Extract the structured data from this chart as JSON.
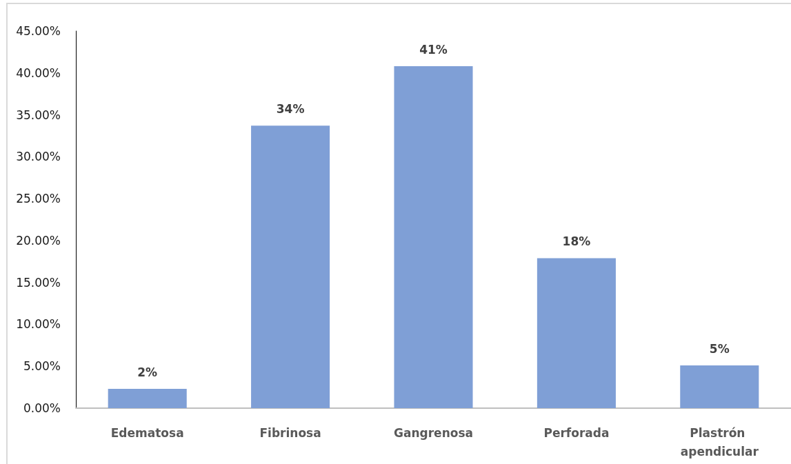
{
  "chart_data": {
    "type": "bar",
    "categories": [
      "Edematosa",
      "Fibrinosa",
      "Gangrenosa",
      "Perforada",
      "Plastrón apendicular"
    ],
    "values": [
      2.3,
      33.7,
      40.8,
      17.9,
      5.1
    ],
    "value_labels": [
      "2%",
      "34%",
      "41%",
      "18%",
      "5%"
    ],
    "color": "#7f9fd6",
    "ylim": [
      0,
      45
    ],
    "yticks": [
      {
        "value": 0,
        "label": "0.00%"
      },
      {
        "value": 5,
        "label": "5.00%"
      },
      {
        "value": 10,
        "label": "10.00%"
      },
      {
        "value": 15,
        "label": "15.00%"
      },
      {
        "value": 20,
        "label": "20.00%"
      },
      {
        "value": 25,
        "label": "25.00%"
      },
      {
        "value": 30,
        "label": "30.00%"
      },
      {
        "value": 35,
        "label": "35.00%"
      },
      {
        "value": 40,
        "label": "40.00%"
      },
      {
        "value": 45,
        "label": "45.00%"
      }
    ]
  }
}
